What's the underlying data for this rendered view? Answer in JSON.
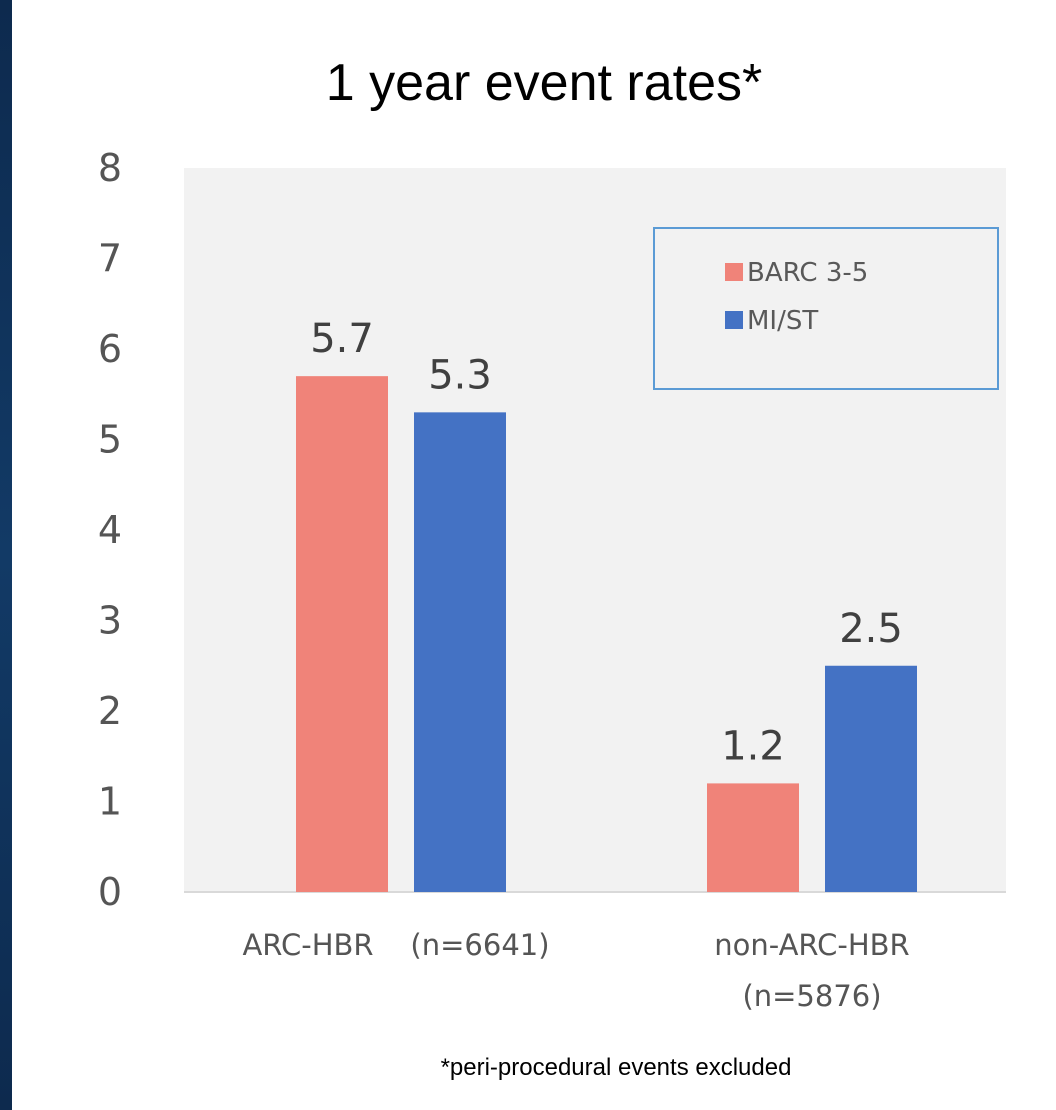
{
  "colors": {
    "background": "#123a66",
    "plot_area": "#f2f2f2",
    "legend_border": "#5b9bd5",
    "barc": "#f08379",
    "mist": "#4472c4"
  },
  "chart_data": {
    "type": "bar",
    "title": "1 year event rates*",
    "xlabel": "",
    "ylabel": "",
    "ylim": [
      0,
      8
    ],
    "yticks": [
      0,
      1,
      2,
      3,
      4,
      5,
      6,
      7,
      8
    ],
    "categories": [
      [
        "ARC-HBR    (n=6641)"
      ],
      [
        "non-ARC-HBR",
        "(n=5876)"
      ]
    ],
    "series": [
      {
        "name": "BARC 3-5",
        "color": "#f08379",
        "values": [
          5.7,
          1.2
        ],
        "labels": [
          "5.7",
          "1.2"
        ]
      },
      {
        "name": "MI/ST",
        "color": "#4472c4",
        "values": [
          5.3,
          2.5
        ],
        "labels": [
          "5.3",
          "2.5"
        ]
      }
    ],
    "legend": "top-right",
    "grid": false,
    "footnote": "*peri-procedural events excluded"
  }
}
